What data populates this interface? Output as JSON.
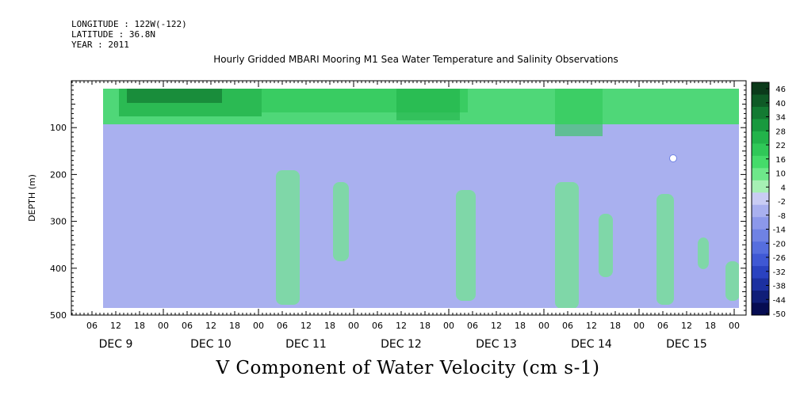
{
  "header": {
    "longitude": "LONGITUDE : 122W(-122)",
    "latitude": "LATITUDE : 36.8N",
    "year": "YEAR : 2011"
  },
  "chart_data": {
    "type": "heatmap",
    "title": "Hourly Gridded MBARI Mooring M1 Sea Water Temperature and Salinity Observations",
    "xlabel_bottom": "V Component of Water Velocity (cm s-1)",
    "ylabel": "DEPTH (m)",
    "ylim": [
      500,
      0
    ],
    "yticks": [
      100,
      200,
      300,
      400,
      500
    ],
    "x_hour_labels": [
      "06",
      "12",
      "18",
      "00",
      "06",
      "12",
      "18",
      "00",
      "06",
      "12",
      "18",
      "00",
      "06",
      "12",
      "18",
      "00",
      "06",
      "12",
      "18",
      "00",
      "06",
      "12",
      "18",
      "00",
      "06",
      "12",
      "18",
      "00"
    ],
    "x_day_labels": [
      "DEC  9",
      "DEC 10",
      "DEC 11",
      "DEC 12",
      "DEC 13",
      "DEC 14",
      "DEC 15"
    ],
    "colorbar": {
      "labels": [
        "46",
        "40",
        "34",
        "28",
        "22",
        "16",
        "10",
        "4",
        "-2",
        "-8",
        "-14",
        "-20",
        "-26",
        "-32",
        "-38",
        "-44",
        "-50"
      ],
      "colors": [
        "#0b3a1a",
        "#0f5a26",
        "#137a32",
        "#18993e",
        "#22b34a",
        "#30c858",
        "#45db6a",
        "#6ee88a",
        "#a6f0b4",
        "#c9ccf4",
        "#a9b0ef",
        "#8c98ea",
        "#6f82e4",
        "#566ede",
        "#3f58d4",
        "#2a42c0",
        "#1c30a0",
        "#101e78",
        "#060c52"
      ]
    },
    "x_range": "DEC 9 00:00 to DEC 16 00:00, 2011",
    "grid": false,
    "legend": "colorbar-right",
    "pattern": "Positive (green) velocities dominate near-surface 0-150 m; negative (blue) velocities dominate below with vertical green streaks of positive flow; one white (missing) dot near DEC 15 09h at ~165 m."
  }
}
